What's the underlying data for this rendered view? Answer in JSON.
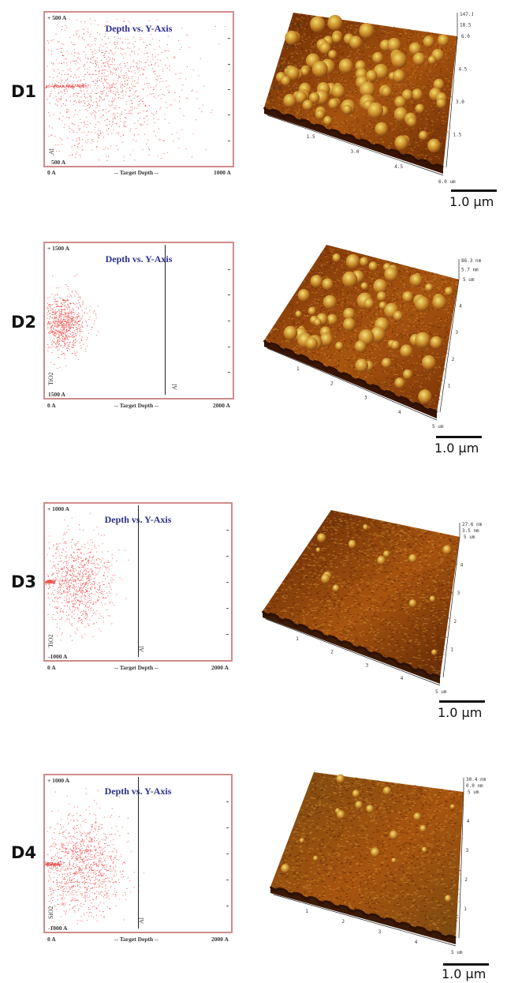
{
  "rows": [
    {
      "label": "D1",
      "sim": {
        "title": "Depth vs. Y-Axis",
        "y_top": "+ 500 A",
        "y_bottom": "500 A",
        "x_left": "0 A",
        "x_center": "-- Target Depth --",
        "x_right": "1000 A",
        "layer_left": "Al",
        "layer_right": "",
        "boundary_frac": null
      },
      "afm": {
        "z_max": "147.1 nm",
        "z_mid": "18.5 nm",
        "x_ticks": [
          "1.5",
          "3.0",
          "4.5",
          "6.0 um"
        ],
        "y_ticks": [
          "1.5",
          "3.0",
          "4.5",
          "6.0 um"
        ],
        "left_ticks": [
          "1.5",
          "3.0",
          "4.5",
          "6.0"
        ],
        "color_light": "#f0dd6a",
        "color_dark": "#6b2c05"
      },
      "scalebar": "1.0 µm"
    },
    {
      "label": "D2",
      "sim": {
        "title": "Depth vs. Y-Axis",
        "y_top": "+ 1500 A",
        "y_bottom": "1500 A",
        "x_left": "0 A",
        "x_center": "-- Target Depth --",
        "x_right": "2000 A",
        "layer_left": "TiO2",
        "layer_right": "Al",
        "boundary_frac": 0.64
      },
      "afm": {
        "z_max": "86.3 nm",
        "z_mid": "5.7 nm",
        "x_ticks": [
          "1",
          "2",
          "3",
          "4",
          "5 um"
        ],
        "y_ticks": [
          "1",
          "2",
          "3",
          "4",
          "5 um"
        ],
        "left_ticks": [],
        "color_light": "#f3e27a",
        "color_dark": "#7a3408"
      },
      "scalebar": "1.0 µm"
    },
    {
      "label": "D3",
      "sim": {
        "title": "Depth vs. Y-Axis",
        "y_top": "+ 1000 A",
        "y_bottom": "-1000 A",
        "x_left": "0 A",
        "x_center": "-- Target Depth --",
        "x_right": "2000 A",
        "layer_left": "TiO2",
        "layer_right": "Al",
        "boundary_frac": 0.5
      },
      "afm": {
        "z_max": "27.6 nm",
        "z_mid": "3.5 nm",
        "x_ticks": [
          "1",
          "2",
          "3",
          "4",
          "5 um"
        ],
        "y_ticks": [
          "1",
          "2",
          "3",
          "4",
          "5 um"
        ],
        "left_ticks": [],
        "color_light": "#f3e27a",
        "color_dark": "#5e2705"
      },
      "scalebar": "1.0 µm"
    },
    {
      "label": "D4",
      "sim": {
        "title": "Depth vs. Y-Axis",
        "y_top": "+ 1000 A",
        "y_bottom": "-1000 A",
        "x_left": "0 A",
        "x_center": "-- Target Depth --",
        "x_right": "2000 A",
        "layer_left": "SiO2",
        "layer_right": "Al",
        "boundary_frac": 0.5
      },
      "afm": {
        "z_max": "30.4 nm",
        "z_mid": "0.0 nm",
        "x_ticks": [
          "1",
          "2",
          "3",
          "4",
          "5 um"
        ],
        "y_ticks": [
          "1",
          "2",
          "3",
          "4",
          "5 um"
        ],
        "left_ticks": [],
        "color_light": "#f3e27a",
        "color_dark": "#7a4a10"
      },
      "scalebar": "1.0 µm"
    }
  ]
}
